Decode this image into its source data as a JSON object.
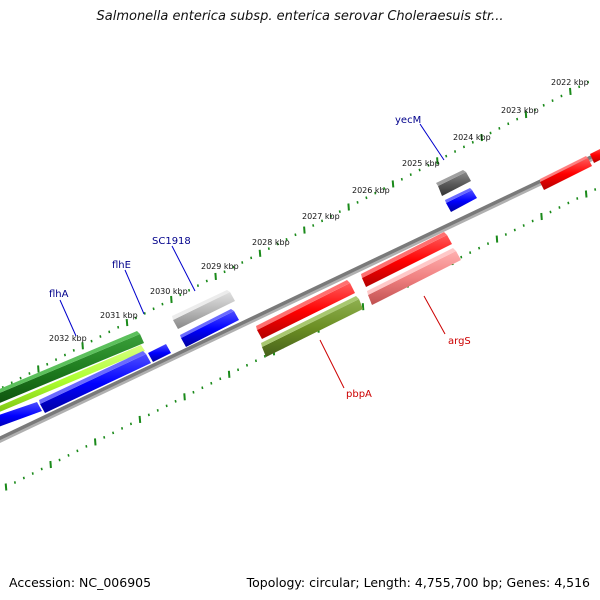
{
  "title": "Salmonella enterica subsp. enterica serovar Choleraesuis str...",
  "footer": {
    "accession": "Accession: NC_006905",
    "summary": "Topology: circular; Length: 4,755,700 bp; Genes: 4,516"
  },
  "colors": {
    "backbone": "#808080",
    "ticks": "#1a8a1a",
    "label_blue": "#00008b",
    "label_red": "#cc0000"
  },
  "kbp_labels": [
    "2022 kbp",
    "2023 kbp",
    "2024 kbp",
    "2025 kbp",
    "2026 kbp",
    "2027 kbp",
    "2028 kbp",
    "2029 kbp",
    "2030 kbp",
    "2031 kbp",
    "2032 kbp"
  ],
  "gene_labels": [
    {
      "name": "yecM",
      "color": "#00008b"
    },
    {
      "name": "SC1918",
      "color": "#00008b"
    },
    {
      "name": "flhE",
      "color": "#00008b"
    },
    {
      "name": "flhA",
      "color": "#00008b"
    },
    {
      "name": "argS",
      "color": "#cc0000"
    },
    {
      "name": "pbpA",
      "color": "#cc0000"
    }
  ]
}
